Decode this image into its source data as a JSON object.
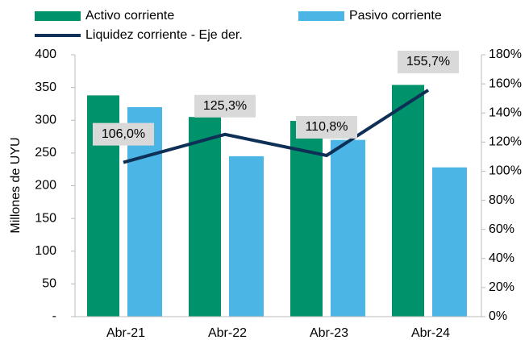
{
  "chart_data": {
    "type": "bar-line",
    "y_label": "Millones de UYU",
    "categories": [
      "Abr-21",
      "Abr-22",
      "Abr-23",
      "Abr-24"
    ],
    "series": [
      {
        "name": "Activo corriente",
        "type": "bar",
        "color": "#00936b",
        "values": [
          338,
          305,
          299,
          354
        ]
      },
      {
        "name": "Pasivo corriente",
        "type": "bar",
        "color": "#4bb6e6",
        "values": [
          320,
          245,
          270,
          228
        ]
      },
      {
        "name": "Liquidez corriente - Eje der.",
        "type": "line",
        "axis": "y2",
        "color": "#0e2f56",
        "values": [
          106.0,
          125.3,
          110.8,
          155.7
        ],
        "value_labels": [
          "106,0%",
          "125,3%",
          "110,8%",
          "155,7%"
        ]
      }
    ],
    "ylim": [
      0,
      400
    ],
    "yticks": [
      {
        "value": 0,
        "label": "-"
      },
      50,
      100,
      150,
      200,
      250,
      300,
      350,
      400
    ],
    "y2lim": [
      0,
      180
    ],
    "y2ticks": [
      {
        "value": 0,
        "label": "0%"
      },
      {
        "value": 20,
        "label": "20%"
      },
      {
        "value": 40,
        "label": "40%"
      },
      {
        "value": 60,
        "label": "60%"
      },
      {
        "value": 80,
        "label": "80%"
      },
      {
        "value": 100,
        "label": "100%"
      },
      {
        "value": 120,
        "label": "120%"
      },
      {
        "value": 140,
        "label": "140%"
      },
      {
        "value": 160,
        "label": "160%"
      },
      {
        "value": 180,
        "label": "180%"
      }
    ]
  }
}
